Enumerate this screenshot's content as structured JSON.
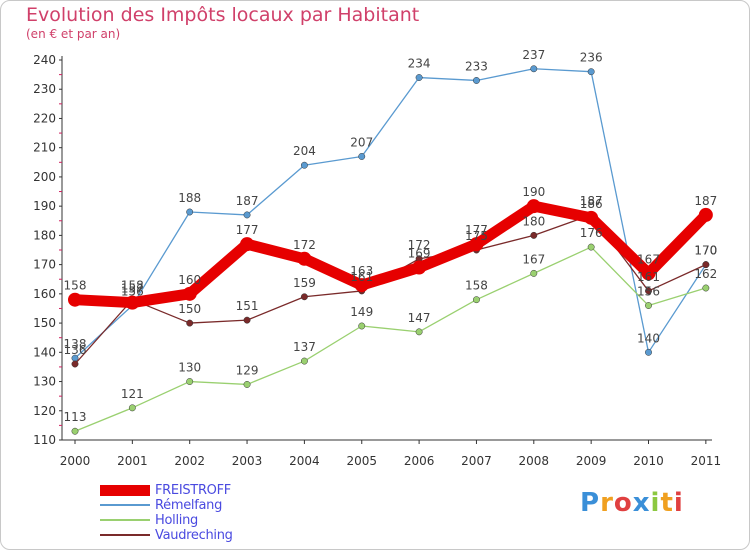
{
  "title": "Evolution des Impôts locaux par Habitant",
  "subtitle": "(en € et par an)",
  "logo": {
    "text": "Proxiti",
    "letters": [
      {
        "ch": "P",
        "color": "#3a8fd8"
      },
      {
        "ch": "r",
        "color": "#f0a020"
      },
      {
        "ch": "o",
        "color": "#e04040"
      },
      {
        "ch": "x",
        "color": "#3a8fd8"
      },
      {
        "ch": "i",
        "color": "#8cc840"
      },
      {
        "ch": "t",
        "color": "#f0a020"
      },
      {
        "ch": "i",
        "color": "#e04040"
      }
    ]
  },
  "chart_data": {
    "type": "line",
    "title": "Evolution des Impôts locaux par Habitant",
    "subtitle": "(en € et par an)",
    "x": [
      "2000",
      "2001",
      "2002",
      "2003",
      "2004",
      "2005",
      "2006",
      "2007",
      "2008",
      "2009",
      "2010",
      "2011"
    ],
    "ylim": [
      110,
      240
    ],
    "yticks": [
      110,
      120,
      130,
      140,
      150,
      160,
      170,
      180,
      190,
      200,
      210,
      220,
      230,
      240
    ],
    "grid": false,
    "legend_position": "bottom-left",
    "series": [
      {
        "name": "FREISTROFF",
        "color": "#e60000",
        "values": [
          158,
          157,
          160,
          177,
          172,
          163,
          169,
          177,
          190,
          186,
          167,
          187
        ]
      },
      {
        "name": "Rémelfang",
        "color": "#5a9ad0",
        "values": [
          138,
          156,
          188,
          187,
          204,
          207,
          234,
          233,
          237,
          236,
          140,
          170
        ]
      },
      {
        "name": "Holling",
        "color": "#9ad070",
        "values": [
          113,
          121,
          130,
          129,
          137,
          149,
          147,
          158,
          167,
          176,
          156,
          162
        ]
      },
      {
        "name": "Vaudreching",
        "color": "#7a2a2a",
        "values": [
          136,
          158,
          150,
          151,
          159,
          161,
          172,
          175,
          180,
          187,
          161,
          170
        ]
      }
    ]
  }
}
